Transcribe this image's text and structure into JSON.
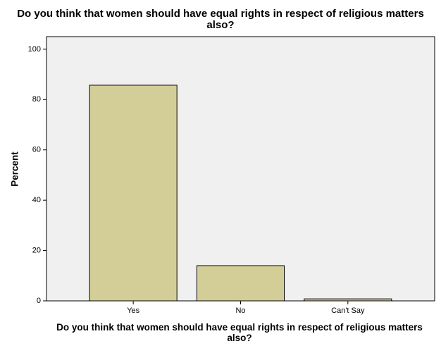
{
  "chart_data": {
    "type": "bar",
    "title": "Do you think that women should have equal rights in respect of religious matters also?",
    "x_label": "Do you think that women should have equal rights in respect of religious matters also?",
    "y_label": "Percent",
    "categories": [
      "Yes",
      "No",
      "Can't Say"
    ],
    "values": [
      85.7,
      14.0,
      0.8
    ],
    "color": "#d3ce97",
    "ylim": [
      0,
      105
    ],
    "yticks": [
      0,
      20,
      40,
      60,
      80,
      100
    ]
  }
}
